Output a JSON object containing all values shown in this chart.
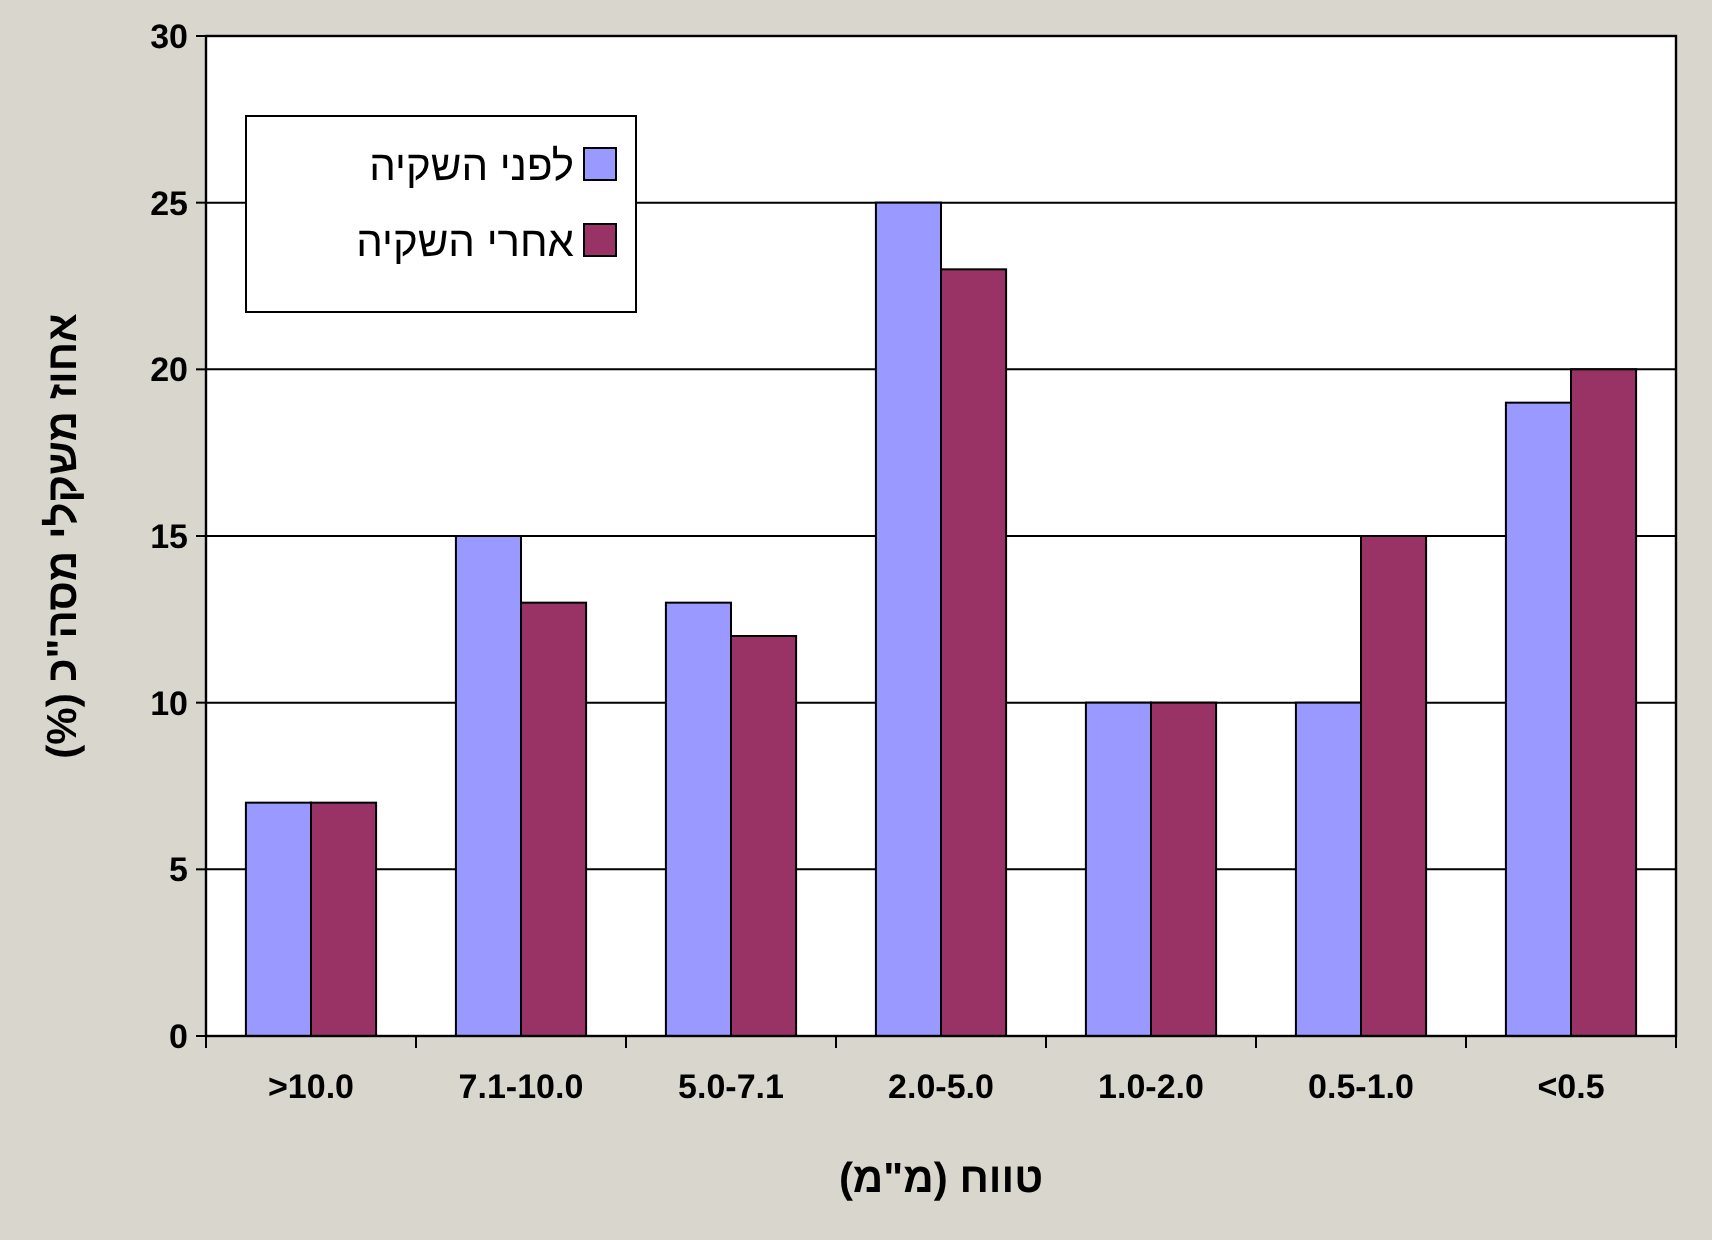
{
  "chart_data": {
    "type": "bar",
    "categories": [
      ">10.0",
      "7.1-10.0",
      "5.0-7.1",
      "2.0-5.0",
      "1.0-2.0",
      "0.5-1.0",
      "<0.5"
    ],
    "series": [
      {
        "name": "לפני השקיה",
        "color": "#9999ff",
        "values": [
          7,
          15,
          13,
          25,
          10,
          10,
          19
        ]
      },
      {
        "name": "אחרי השקיה",
        "color": "#993366",
        "values": [
          7,
          13,
          12,
          23,
          10,
          15,
          20
        ]
      }
    ],
    "xlabel": "טווח (מ\"מ)",
    "ylabel": "אחוז משקלי מסה\"כ (%)",
    "ylim": [
      0,
      30
    ],
    "yticks": [
      0,
      5,
      10,
      15,
      20,
      25,
      30
    ],
    "grid": "y",
    "legend": "top left"
  }
}
